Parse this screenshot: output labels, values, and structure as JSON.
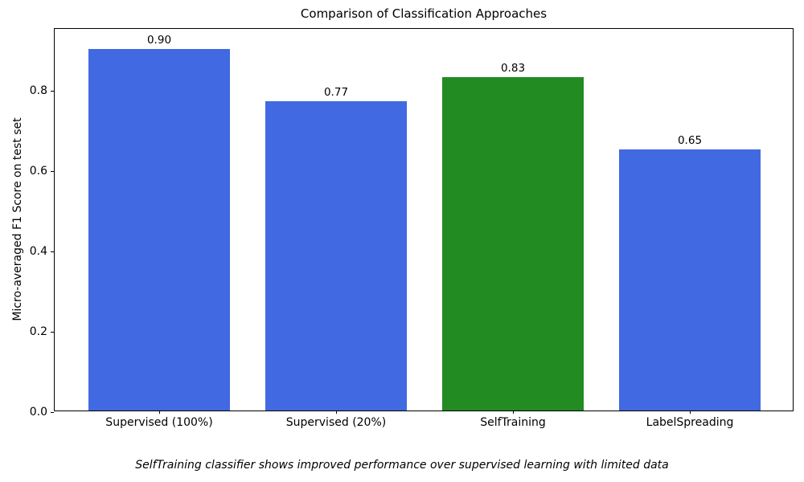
{
  "chart_data": {
    "type": "bar",
    "title": "Comparison of Classification Approaches",
    "xlabel": "",
    "ylabel": "Micro-averaged F1 Score on test set",
    "caption": "SelfTraining classifier shows improved performance over supervised learning with limited data",
    "categories": [
      "Supervised (100%)",
      "Supervised (20%)",
      "SelfTraining",
      "LabelSpreading"
    ],
    "values": [
      0.9,
      0.77,
      0.83,
      0.65
    ],
    "value_labels": [
      "0.90",
      "0.77",
      "0.83",
      "0.65"
    ],
    "bar_colors": [
      "#4169e1",
      "#4169e1",
      "#228b22",
      "#4169e1"
    ],
    "yticks": [
      0.0,
      0.2,
      0.4,
      0.6,
      0.8
    ],
    "ytick_labels": [
      "0.0",
      "0.2",
      "0.4",
      "0.6",
      "0.8"
    ],
    "ylim": [
      0,
      0.954
    ],
    "grid": false,
    "legend_position": "none",
    "colors": {
      "background": "#ffffff",
      "spine": "#000000",
      "text": "#000000",
      "bar_blue": "#4169e1",
      "bar_green": "#228b22"
    }
  }
}
